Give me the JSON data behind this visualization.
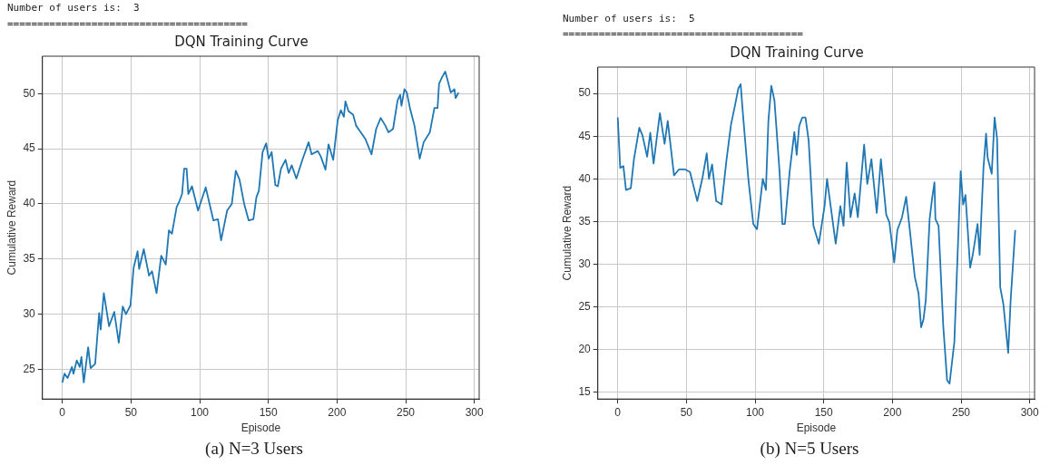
{
  "chart_data": [
    {
      "type": "line",
      "title": "DQN Training Curve",
      "xlabel": "Episode",
      "ylabel": "Cumulative Reward",
      "annotations": [
        "Number of users is:  3",
        "========================================",
        "(a) N=3 Users"
      ],
      "x": [
        0,
        1.6,
        3.8,
        7,
        8.1,
        10.5,
        12.7,
        13.9,
        15.6,
        18.8,
        20.6,
        23.9,
        26.8,
        27.9,
        30.2,
        34,
        37.8,
        41.1,
        44,
        46.3,
        49.6,
        51.9,
        54.8,
        55.9,
        59.3,
        63.1,
        65.3,
        68.6,
        72,
        75.3,
        77.6,
        79.8,
        83.2,
        85.4,
        87.2,
        88.7,
        90.5,
        91.7,
        94.4,
        98.8,
        104.4,
        110,
        113.3,
        115.6,
        120,
        123.4,
        126.3,
        129,
        132.4,
        135.7,
        139.1,
        141.3,
        143.1,
        145.8,
        148.4,
        150.2,
        152.4,
        155.1,
        156.9,
        159.2,
        162.5,
        164.8,
        167,
        170.4,
        174.8,
        179.3,
        181.5,
        186,
        188.2,
        191.6,
        193.8,
        197.2,
        200.5,
        202.8,
        205,
        206.1,
        208.4,
        211.7,
        213.9,
        217.3,
        220.6,
        225.1,
        228.5,
        231.8,
        235.2,
        237.4,
        240.8,
        244.1,
        246,
        246.9,
        249.1,
        250.8,
        253.1,
        256.4,
        260.2,
        263.1,
        267.6,
        270.9,
        273.2,
        274.3,
        276.5,
        278.8,
        281,
        282.8,
        285.5,
        286.3,
        288.5
      ],
      "series": [
        {
          "color": "#1f77b4",
          "values": [
            23.8,
            24.6,
            24.2,
            25.2,
            24.6,
            25.8,
            25.2,
            26.1,
            23.8,
            27.0,
            25.1,
            25.5,
            30.1,
            28.6,
            31.9,
            28.9,
            30.2,
            27.4,
            30.7,
            30.0,
            30.8,
            34.2,
            35.7,
            34.1,
            35.9,
            33.5,
            33.9,
            31.9,
            35.3,
            34.5,
            37.6,
            37.3,
            39.7,
            40.3,
            40.9,
            43.2,
            43.2,
            40.9,
            41.6,
            39.4,
            41.5,
            38.5,
            38.6,
            36.7,
            39.4,
            40.0,
            43.0,
            42.2,
            40.0,
            38.5,
            38.6,
            40.6,
            41.2,
            44.7,
            45.5,
            44.1,
            44.7,
            41.7,
            41.6,
            43.2,
            44.0,
            42.8,
            43.5,
            42.3,
            44.0,
            45.6,
            44.5,
            44.8,
            44.3,
            43.1,
            45.4,
            44.0,
            47.6,
            48.5,
            47.9,
            49.3,
            48.4,
            48.1,
            47.1,
            46.5,
            45.9,
            44.5,
            46.8,
            47.8,
            47.1,
            46.5,
            46.8,
            49.4,
            49.9,
            48.9,
            50.4,
            50.1,
            48.7,
            47.1,
            44.1,
            45.6,
            46.5,
            48.7,
            48.7,
            50.9,
            51.5,
            52.0,
            51.0,
            50.1,
            50.4,
            49.6,
            50.1
          ]
        }
      ],
      "xlim": [
        -14.5,
        303.5
      ],
      "xticks": [
        0,
        50,
        100,
        150,
        200,
        250,
        300
      ],
      "ylim": [
        22.3,
        53.4
      ],
      "yticks": [
        25,
        30,
        35,
        40,
        45,
        50
      ],
      "grid": true,
      "marker": "none"
    },
    {
      "type": "line",
      "title": "DQN Training Curve",
      "xlabel": "Episode",
      "ylabel": "Cumulative Reward",
      "annotations": [
        "Number of users is:  5",
        "========================================",
        "(b) N=5 Users"
      ],
      "x": [
        0,
        1.8,
        4.1,
        6,
        9.5,
        11.8,
        15.7,
        18,
        21.4,
        23.7,
        26.1,
        30.7,
        34.1,
        36.4,
        41,
        44.5,
        49.1,
        52.6,
        57.9,
        61.8,
        64.8,
        66.4,
        68.7,
        71.7,
        75.6,
        79.1,
        82.5,
        85.5,
        87.8,
        89.5,
        91.1,
        95.2,
        98.7,
        101.4,
        105.6,
        107.9,
        109.7,
        111.8,
        114.1,
        117.8,
        119.9,
        121.7,
        125.2,
        128.6,
        130.3,
        132.1,
        134.4,
        136.7,
        139,
        142.5,
        146.4,
        150.6,
        152.4,
        155.2,
        158.7,
        162.1,
        164.4,
        166.7,
        169.5,
        172.5,
        174.8,
        179.4,
        181.7,
        184.7,
        188.6,
        191.6,
        195.5,
        197.8,
        201.3,
        203.6,
        207,
        210,
        212.8,
        216.3,
        219,
        220.9,
        222.7,
        224.3,
        227.1,
        228.9,
        230.6,
        231.3,
        233.6,
        237,
        239.8,
        241.6,
        245.1,
        249.7,
        251.5,
        253.2,
        256.6,
        258.5,
        262,
        263.5,
        266.3,
        268.2,
        269.3,
        272.3,
        274.4,
        276.2,
        278.5,
        280.8,
        284.3,
        286.1,
        289.4
      ],
      "series": [
        {
          "color": "#1f77b4",
          "values": [
            47.2,
            41.3,
            41.5,
            38.7,
            38.9,
            42.3,
            46.0,
            45.1,
            42.6,
            45.4,
            41.8,
            47.7,
            44.1,
            46.8,
            40.4,
            41.1,
            41.1,
            40.8,
            37.4,
            40.2,
            43.0,
            40.0,
            41.7,
            37.4,
            37.0,
            42.1,
            46.4,
            48.7,
            50.6,
            51.1,
            47.7,
            39.8,
            34.7,
            34.1,
            40.0,
            38.7,
            46.8,
            50.9,
            49.2,
            40.9,
            34.7,
            34.7,
            40.9,
            45.5,
            42.8,
            46.2,
            47.2,
            47.2,
            44.5,
            34.5,
            32.4,
            36.8,
            40.0,
            36.6,
            32.4,
            36.8,
            34.5,
            41.9,
            35.5,
            38.3,
            35.5,
            44.0,
            39.4,
            42.3,
            36.0,
            42.3,
            35.8,
            34.9,
            30.2,
            34.0,
            35.5,
            37.9,
            33.8,
            28.5,
            26.6,
            22.6,
            23.6,
            25.8,
            35.3,
            37.7,
            39.6,
            35.3,
            34.5,
            22.8,
            16.4,
            16.0,
            20.9,
            40.9,
            37.0,
            38.1,
            29.6,
            31.1,
            34.7,
            31.1,
            41.3,
            45.3,
            42.5,
            40.6,
            47.2,
            44.7,
            27.3,
            25.3,
            19.6,
            25.8,
            34.0
          ]
        }
      ],
      "xlim": [
        -14.5,
        303.5
      ],
      "xticks": [
        0,
        50,
        100,
        150,
        200,
        250,
        300
      ],
      "ylim": [
        14.2,
        53.1
      ],
      "yticks": [
        15,
        20,
        25,
        30,
        35,
        40,
        45,
        50
      ],
      "grid": true,
      "marker": "none"
    }
  ]
}
